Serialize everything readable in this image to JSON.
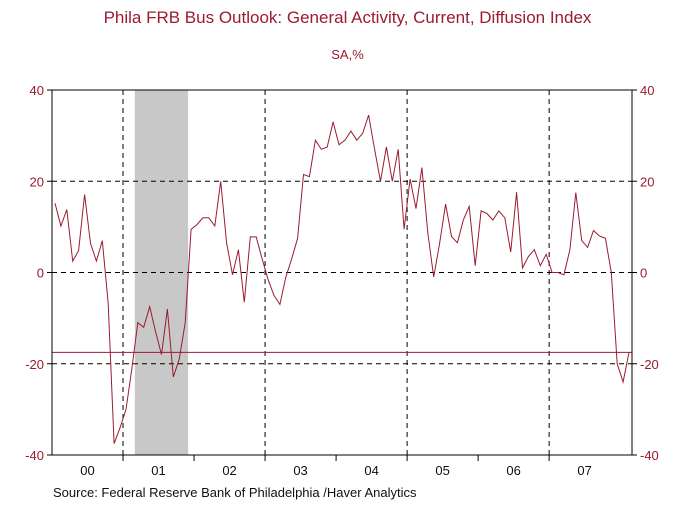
{
  "chart_data": {
    "type": "line",
    "title": "Phila FRB Bus Outlook: General Activity, Current, Diffusion Index",
    "subtitle": "SA,%",
    "source": "Source:  Federal Reserve Bank of Philadelphia /Haver Analytics",
    "x_tick_labels": [
      "00",
      "01",
      "02",
      "03",
      "04",
      "05",
      "06",
      "07"
    ],
    "y_ticks_left": [
      "40",
      "20",
      "0",
      "-20",
      "-40"
    ],
    "y_ticks_right": [
      "40",
      "20",
      "0",
      "-20",
      "-40"
    ],
    "ylim": [
      -40,
      40
    ],
    "x_start": "2000-01",
    "reference_line": -17.5,
    "recession_shading": {
      "start": "2001-03",
      "end": "2001-11"
    },
    "grid": "dashed",
    "colors": {
      "series": "#9b1b30",
      "shading": "#c8c8c8",
      "text": "#9b1b30"
    },
    "series": [
      {
        "values": [
          15.2,
          10.2,
          13.8,
          2.5,
          4.8,
          17.1,
          6.4,
          2.5,
          7.0,
          -6.8,
          -37.5,
          -34.0,
          -30.0,
          -21.0,
          -11.0,
          -12.0,
          -7.5,
          -13.0,
          -18.0,
          -8.0,
          -22.9,
          -19.0,
          -11.0,
          9.5,
          10.5,
          12.0,
          12.0,
          10.2,
          20.0,
          6.5,
          -0.5,
          5.0,
          -6.5,
          7.8,
          7.8,
          3.0,
          -1.5,
          -5.0,
          -7.0,
          -1.0,
          3.0,
          7.5,
          21.5,
          21.0,
          29.0,
          27.0,
          27.5,
          33.0,
          28.0,
          29.0,
          31.0,
          29.0,
          30.5,
          34.5,
          27.0,
          20.0,
          27.5,
          20.0,
          27.0,
          9.5,
          20.5,
          14.0,
          23.0,
          8.7,
          -1.0,
          6.5,
          15.0,
          7.9,
          6.5,
          11.5,
          14.5,
          1.5,
          13.5,
          12.9,
          11.5,
          13.5,
          12.0,
          4.5,
          17.6,
          1.0,
          3.5,
          5.0,
          1.5,
          4.0,
          0.0,
          0.0,
          -0.5,
          5.0,
          17.5,
          7.0,
          5.5,
          9.2,
          8.0,
          7.5,
          0.0,
          -20.0,
          -24.0,
          -17.5
        ]
      }
    ]
  }
}
